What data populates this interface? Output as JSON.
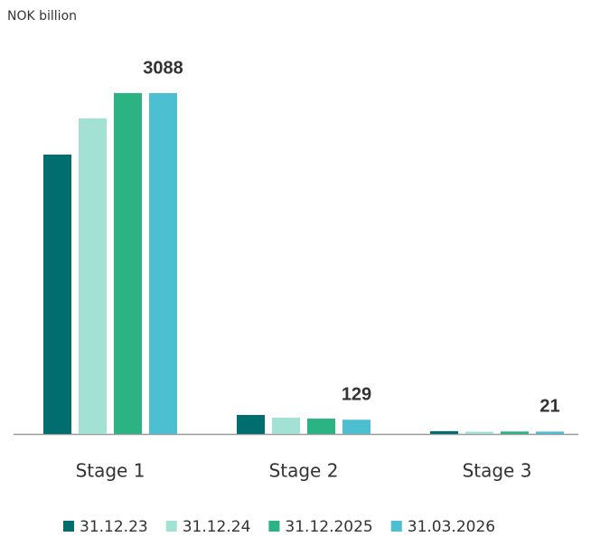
{
  "chart_data": {
    "type": "bar",
    "title": "NOK billion",
    "categories": [
      "Stage 1",
      "Stage 2",
      "Stage 3"
    ],
    "series": [
      {
        "name": "31.12.23",
        "color": "#006e6e",
        "values": [
          2531,
          172,
          25
        ]
      },
      {
        "name": "31.12.24",
        "color": "#a3e1d4",
        "values": [
          2859,
          147,
          20
        ]
      },
      {
        "name": "31.12.2025",
        "color": "#2bb383",
        "values": [
          3088,
          139,
          22
        ]
      },
      {
        "name": "31.03.2026",
        "color": "#4cbfd0",
        "values": [
          3088,
          129,
          21
        ],
        "labels": true
      }
    ],
    "legend": "bottom"
  }
}
